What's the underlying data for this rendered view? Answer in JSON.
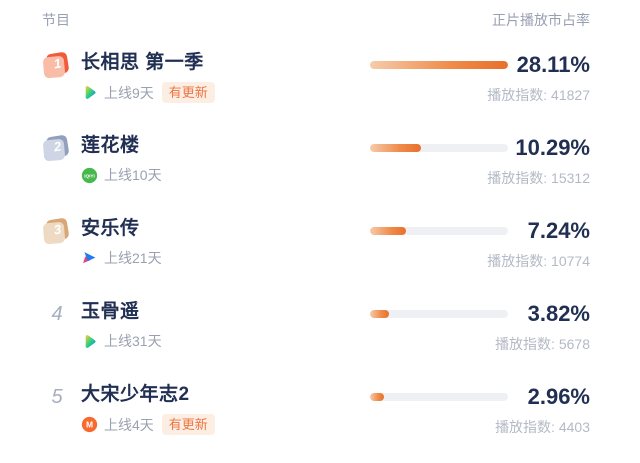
{
  "header": {
    "left": "节目",
    "right": "正片播放市占率"
  },
  "max_percent": 28.11,
  "colors": {
    "accent_orange": "#e8702c",
    "title_navy": "#212f52",
    "muted_gray": "#9aa1b0",
    "index_gray": "#b3bac6",
    "update_badge_bg": "#fdeee3",
    "update_badge_text": "#ec7544",
    "rank1_badge": "#f25a3c",
    "rank2_badge": "#93a0bd",
    "rank3_badge": "#d9a678",
    "track_gray": "#eef0f4"
  },
  "rows": [
    {
      "rank": "1",
      "title": "长相思 第一季",
      "platform_icon": "tencent-video-icon",
      "online_label": "上线9天",
      "update_label": "有更新",
      "percent": "28.11%",
      "percent_value": 28.11,
      "index_label": "播放指数: 41827"
    },
    {
      "rank": "2",
      "title": "莲花楼",
      "platform_icon": "iqiyi-icon",
      "online_label": "上线10天",
      "percent": "10.29%",
      "percent_value": 10.29,
      "index_label": "播放指数: 15312"
    },
    {
      "rank": "3",
      "title": "安乐传",
      "platform_icon": "youku-icon",
      "online_label": "上线21天",
      "percent": "7.24%",
      "percent_value": 7.24,
      "index_label": "播放指数: 10774"
    },
    {
      "rank": "4",
      "title": "玉骨遥",
      "platform_icon": "tencent-video-icon",
      "online_label": "上线31天",
      "percent": "3.82%",
      "percent_value": 3.82,
      "index_label": "播放指数: 5678"
    },
    {
      "rank": "5",
      "title": "大宋少年志2",
      "platform_icon": "mgtv-icon",
      "online_label": "上线4天",
      "update_label": "有更新",
      "percent": "2.96%",
      "percent_value": 2.96,
      "index_label": "播放指数: 4403"
    }
  ]
}
